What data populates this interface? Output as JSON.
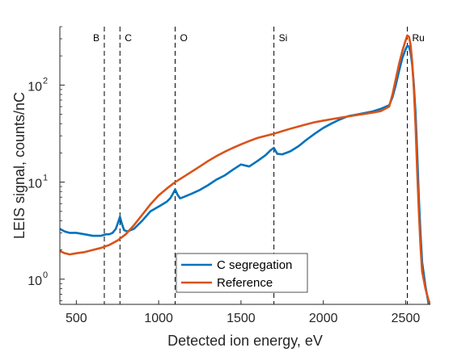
{
  "chart_data": {
    "type": "line",
    "title": "",
    "xlabel": "Detected ion energy, eV",
    "ylabel": "LEIS signal, counts/nC",
    "xlim": [
      400,
      2650
    ],
    "ylim": [
      0.55,
      400
    ],
    "yscale": "log",
    "x_ticks": [
      {
        "value": 500,
        "label": "500"
      },
      {
        "value": 1000,
        "label": "1000"
      },
      {
        "value": 1500,
        "label": "1500"
      },
      {
        "value": 2000,
        "label": "2000"
      },
      {
        "value": 2500,
        "label": "2500"
      }
    ],
    "y_ticks": [
      {
        "value": 1,
        "base": "10",
        "exp": "0"
      },
      {
        "value": 10,
        "base": "10",
        "exp": "1"
      },
      {
        "value": 100,
        "base": "10",
        "exp": "2"
      }
    ],
    "grid": false,
    "legend_position": "bottom-center",
    "annotations": [
      {
        "label": "B",
        "x": 670
      },
      {
        "label": "C",
        "x": 765
      },
      {
        "label": "O",
        "x": 1100
      },
      {
        "label": "Si",
        "x": 1700
      },
      {
        "label": "Ru",
        "x": 2510
      }
    ],
    "series": [
      {
        "name": "C segregation",
        "color": "#0072BD",
        "x": [
          400,
          430,
          460,
          500,
          550,
          600,
          650,
          680,
          700,
          720,
          740,
          755,
          765,
          775,
          790,
          810,
          850,
          900,
          950,
          1000,
          1030,
          1050,
          1070,
          1085,
          1100,
          1115,
          1130,
          1150,
          1200,
          1250,
          1300,
          1350,
          1400,
          1450,
          1500,
          1550,
          1600,
          1650,
          1680,
          1700,
          1720,
          1750,
          1800,
          1850,
          1900,
          1950,
          2000,
          2050,
          2100,
          2150,
          2200,
          2250,
          2300,
          2350,
          2400,
          2420,
          2440,
          2460,
          2480,
          2500,
          2510,
          2520,
          2530,
          2540,
          2550,
          2560,
          2570,
          2580,
          2590,
          2600,
          2620,
          2640
        ],
        "y": [
          3.3,
          3.1,
          3.0,
          3.0,
          2.9,
          2.8,
          2.8,
          2.9,
          2.9,
          3.0,
          3.3,
          3.9,
          4.4,
          3.8,
          3.2,
          3.1,
          3.3,
          4.0,
          5.0,
          5.6,
          6.0,
          6.3,
          6.8,
          7.5,
          8.4,
          7.4,
          6.8,
          7.0,
          7.6,
          8.3,
          9.3,
          10.6,
          11.7,
          13.4,
          15.2,
          14.5,
          16.5,
          19.0,
          21.3,
          22.5,
          19.6,
          19.3,
          20.8,
          23.5,
          27.5,
          31.7,
          36.2,
          40.2,
          44.2,
          47.8,
          49.5,
          51.5,
          53.5,
          57.0,
          62.0,
          75.0,
          100.0,
          140.0,
          190.0,
          235.0,
          253.0,
          250.0,
          215.0,
          160.0,
          100.0,
          52.0,
          20.0,
          7.0,
          3.0,
          1.5,
          0.85,
          0.55
        ]
      },
      {
        "name": "Reference",
        "color": "#D95319",
        "x": [
          400,
          430,
          460,
          500,
          550,
          600,
          650,
          700,
          750,
          800,
          850,
          900,
          950,
          1000,
          1050,
          1100,
          1150,
          1200,
          1250,
          1300,
          1350,
          1400,
          1450,
          1500,
          1550,
          1600,
          1650,
          1700,
          1750,
          1800,
          1850,
          1900,
          1950,
          2000,
          2050,
          2100,
          2150,
          2200,
          2250,
          2300,
          2350,
          2400,
          2420,
          2440,
          2460,
          2480,
          2500,
          2510,
          2520,
          2530,
          2540,
          2550,
          2560,
          2570,
          2580,
          2590,
          2600,
          2620,
          2640,
          2650
        ],
        "y": [
          1.95,
          1.85,
          1.8,
          1.85,
          1.9,
          2.0,
          2.1,
          2.25,
          2.5,
          2.9,
          3.6,
          4.6,
          5.9,
          7.3,
          8.6,
          10.0,
          11.3,
          12.8,
          14.5,
          16.5,
          18.5,
          20.5,
          22.5,
          24.5,
          26.5,
          28.5,
          30.0,
          31.5,
          33.5,
          35.5,
          37.5,
          39.5,
          41.5,
          43.0,
          44.5,
          46.0,
          47.5,
          49.0,
          50.5,
          52.0,
          54.0,
          60.0,
          80.0,
          115.0,
          165.0,
          225.0,
          290.0,
          325.0,
          315.0,
          260.0,
          170.0,
          90.0,
          38.0,
          13.0,
          5.0,
          2.2,
          1.2,
          0.8,
          0.6,
          0.56
        ]
      }
    ]
  }
}
